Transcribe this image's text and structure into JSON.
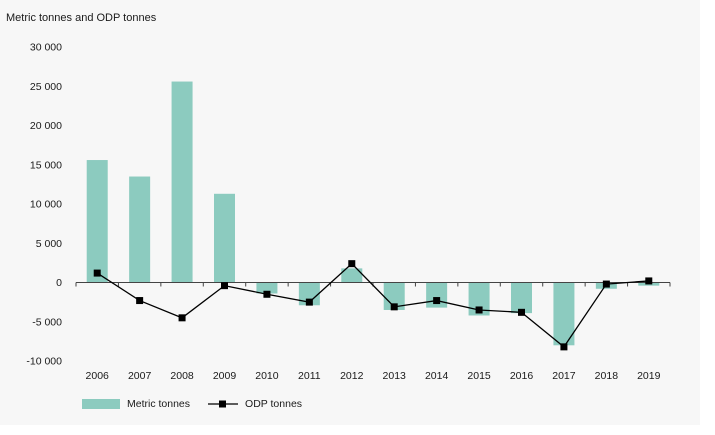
{
  "colors": {
    "bar": "#8ccbbf",
    "line": "#000000",
    "axis": "#444444",
    "background": "#f7f7f7"
  },
  "chart_data": {
    "type": "bar",
    "unit_label": "Metric tonnes and ODP tonnes",
    "categories": [
      "2006",
      "2007",
      "2008",
      "2009",
      "2010",
      "2011",
      "2012",
      "2013",
      "2014",
      "2015",
      "2016",
      "2017",
      "2018",
      "2019"
    ],
    "series": [
      {
        "name": "Metric tonnes",
        "type": "bar",
        "values": [
          15600,
          13500,
          25600,
          11300,
          -1400,
          -2900,
          1800,
          -3500,
          -3200,
          -4200,
          -3900,
          -8000,
          -800,
          -400
        ]
      },
      {
        "name": "ODP tonnes",
        "type": "line",
        "values": [
          1200,
          -2300,
          -4500,
          -400,
          -1500,
          -2500,
          2400,
          -3100,
          -2300,
          -3500,
          -3800,
          -8200,
          -200,
          200
        ]
      }
    ],
    "ylim": [
      -10000,
      30000
    ],
    "yticks": [
      -10000,
      -5000,
      0,
      5000,
      10000,
      15000,
      20000,
      25000,
      30000
    ],
    "ytick_labels": [
      "-10 000",
      "-5 000",
      "0",
      "5 000",
      "10 000",
      "15 000",
      "20 000",
      "25 000",
      "30 000"
    ],
    "grid": false,
    "legend_position": "bottom-left"
  }
}
